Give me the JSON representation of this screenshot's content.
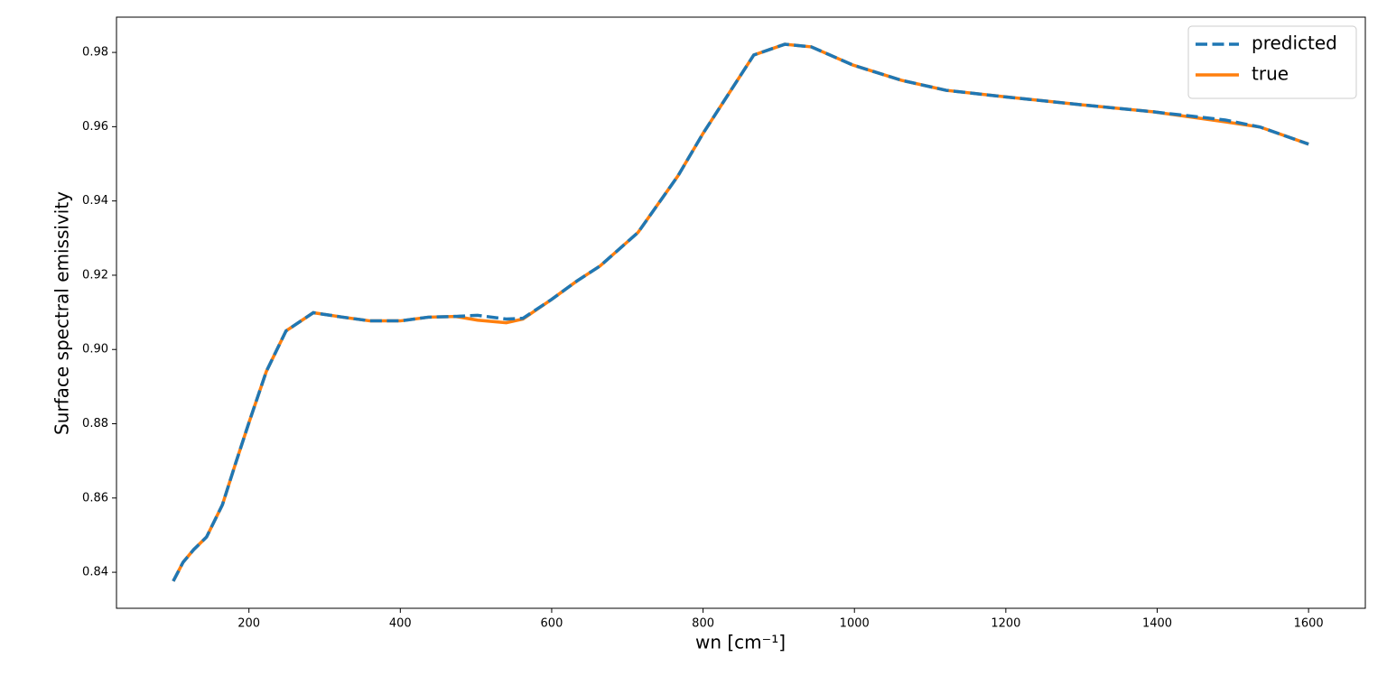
{
  "chart_data": {
    "type": "line",
    "xlabel": "wn [cm⁻¹]",
    "ylabel": "Surface spectral emissivity",
    "x": [
      100,
      113,
      127,
      144,
      165,
      182,
      200,
      223,
      249,
      285,
      324,
      360,
      400,
      437,
      473,
      502,
      540,
      562,
      600,
      633,
      664,
      714,
      767,
      800,
      833,
      867,
      908,
      943,
      998,
      1062,
      1121,
      1196,
      1300,
      1395,
      1490,
      1536,
      1600
    ],
    "series": [
      {
        "name": "predicted",
        "color": "#1f77b4",
        "dash": true,
        "values": [
          0.8376,
          0.8427,
          0.8461,
          0.8495,
          0.8582,
          0.8691,
          0.8803,
          0.8941,
          0.905,
          0.9099,
          0.9087,
          0.9077,
          0.9077,
          0.9087,
          0.9089,
          0.9092,
          0.9082,
          0.9084,
          0.9135,
          0.9184,
          0.9225,
          0.9315,
          0.9468,
          0.9582,
          0.9686,
          0.9793,
          0.9822,
          0.9815,
          0.9766,
          0.9725,
          0.9698,
          0.9681,
          0.9659,
          0.964,
          0.9618,
          0.9599,
          0.9553
        ]
      },
      {
        "name": "true",
        "color": "#ff7f0e",
        "dash": false,
        "values": [
          0.8376,
          0.8427,
          0.8461,
          0.8495,
          0.8582,
          0.8691,
          0.8803,
          0.8941,
          0.905,
          0.9099,
          0.9087,
          0.9077,
          0.9077,
          0.9087,
          0.9089,
          0.9079,
          0.9072,
          0.9082,
          0.9135,
          0.9184,
          0.9225,
          0.9315,
          0.9468,
          0.9582,
          0.9686,
          0.9793,
          0.9822,
          0.9815,
          0.9766,
          0.9725,
          0.9698,
          0.9681,
          0.9659,
          0.964,
          0.9613,
          0.9599,
          0.9553
        ]
      }
    ],
    "xlim": [
      25,
      1675
    ],
    "ylim": [
      0.8303,
      0.9895
    ],
    "xticks": [
      200,
      400,
      600,
      800,
      1000,
      1200,
      1400,
      1600
    ],
    "yticks": [
      0.84,
      0.86,
      0.88,
      {
        "value": 0.9,
        "label": "0.90"
      },
      0.92,
      0.94,
      0.96,
      0.98
    ],
    "legend": "upper right"
  }
}
